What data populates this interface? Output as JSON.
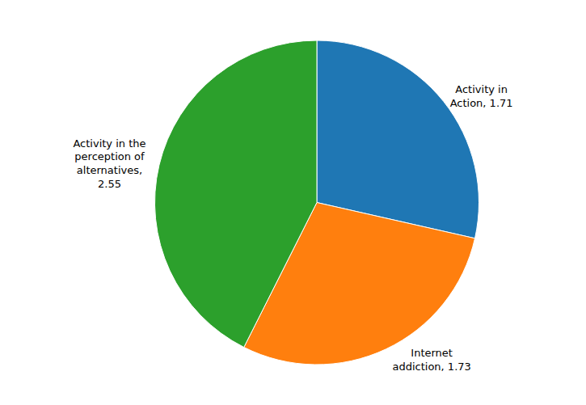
{
  "chart_data": {
    "type": "pie",
    "categories": [
      "Activity in\nAction, 1.71",
      "Internet\naddiction, 1.73",
      "Activity in the\nperception of\nalternatives,\n2.55"
    ],
    "values": [
      1.71,
      1.73,
      2.55
    ]
  }
}
